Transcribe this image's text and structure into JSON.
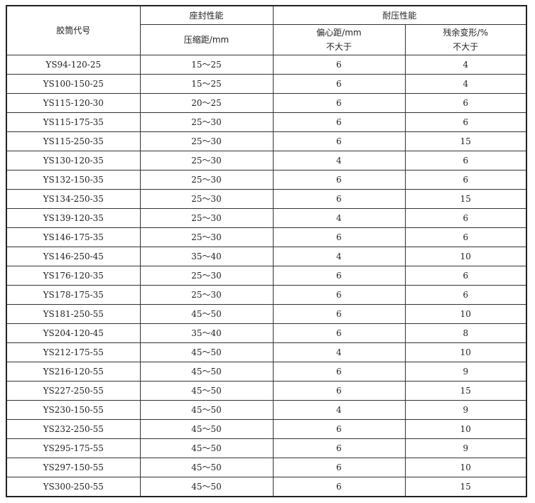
{
  "header": {
    "code": "胶筒代号",
    "seal_group": "座封性能",
    "pressure_group": "耐压性能",
    "compression": "压缩距/mm",
    "eccentric": "偏心距/mm",
    "eccentric_note": "不大于",
    "residual": "残余变形/%",
    "residual_note": "不大于"
  },
  "rows": [
    [
      "YS94-120-25",
      "15～25",
      "6",
      "4"
    ],
    [
      "YS100-150-25",
      "15～25",
      "6",
      "4"
    ],
    [
      "YS115-120-30",
      "20～25",
      "6",
      "6"
    ],
    [
      "YS115-175-35",
      "25～30",
      "6",
      "6"
    ],
    [
      "YS115-250-35",
      "25～30",
      "6",
      "15"
    ],
    [
      "YS130-120-35",
      "25～30",
      "4",
      "6"
    ],
    [
      "YS132-150-35",
      "25～30",
      "6",
      "6"
    ],
    [
      "YS134-250-35",
      "25～30",
      "6",
      "15"
    ],
    [
      "YS139-120-35",
      "25～30",
      "4",
      "6"
    ],
    [
      "YS146-175-35",
      "25～30",
      "6",
      "6"
    ],
    [
      "YS146-250-45",
      "35～40",
      "4",
      "10"
    ],
    [
      "YS176-120-35",
      "25～30",
      "6",
      "6"
    ],
    [
      "YS178-175-35",
      "25～30",
      "6",
      "6"
    ],
    [
      "YS181-250-55",
      "45～50",
      "6",
      "10"
    ],
    [
      "YS204-120-45",
      "35～40",
      "6",
      "8"
    ],
    [
      "YS212-175-55",
      "45～50",
      "4",
      "10"
    ],
    [
      "YS216-120-55",
      "45～50",
      "6",
      "9"
    ],
    [
      "YS227-250-55",
      "45～50",
      "6",
      "15"
    ],
    [
      "YS230-150-55",
      "45～50",
      "4",
      "9"
    ],
    [
      "YS232-250-55",
      "45～50",
      "6",
      "10"
    ],
    [
      "YS295-175-55",
      "45～50",
      "6",
      "9"
    ],
    [
      "YS297-150-55",
      "45～50",
      "6",
      "10"
    ],
    [
      "YS300-250-55",
      "45～50",
      "6",
      "15"
    ]
  ]
}
